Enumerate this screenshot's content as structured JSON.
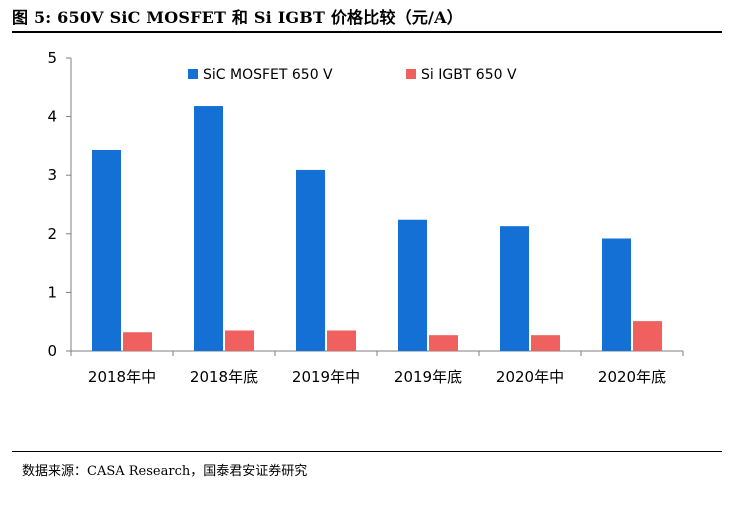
{
  "figure": {
    "title": "图 5:  650V SiC MOSFET 和   Si IGBT 价格比较（元/A）",
    "source": "数据来源：CASA Research，国泰君安证券研究"
  },
  "chart_data": {
    "type": "bar",
    "categories": [
      "2018年中",
      "2018年底",
      "2019年中",
      "2019年底",
      "2020年中",
      "2020年底"
    ],
    "series": [
      {
        "name": "SiC MOSFET 650 V",
        "color": "#1570D6",
        "values": [
          3.43,
          4.18,
          3.09,
          2.24,
          2.13,
          1.92
        ]
      },
      {
        "name": "Si IGBT 650 V",
        "color": "#F0605E",
        "values": [
          0.32,
          0.35,
          0.35,
          0.27,
          0.27,
          0.51
        ]
      }
    ],
    "title": "",
    "xlabel": "",
    "ylabel": "",
    "ylim": [
      0,
      5
    ],
    "yticks": [
      0,
      1,
      2,
      3,
      4,
      5
    ],
    "grid": false,
    "legend_position": "top-center"
  }
}
